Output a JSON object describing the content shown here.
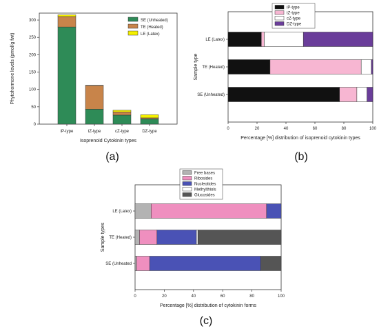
{
  "chart_data": [
    {
      "type": "bar",
      "stacked": true,
      "panel_label": "(a)",
      "xlabel": "Isoprenoid Cytokinin types",
      "ylabel": "Phytohormone levels (pmol/g fwt)",
      "categories": [
        "iP-type",
        "tZ-type",
        "cZ-type",
        "DZ-type"
      ],
      "ylim": [
        0,
        320
      ],
      "yticks": [
        0,
        50,
        100,
        150,
        200,
        250,
        300
      ],
      "legend_position": "top-right",
      "series": [
        {
          "name": "SE (Unheated)",
          "color": "#2e8b57",
          "values": [
            280,
            43,
            26,
            15
          ]
        },
        {
          "name": "TE (Heated)",
          "color": "#c8844a",
          "values": [
            30,
            68,
            9,
            3
          ]
        },
        {
          "name": "LE (Latex)",
          "color": "#f5f000",
          "values": [
            5,
            1,
            5,
            9
          ]
        }
      ]
    },
    {
      "type": "bar",
      "orientation": "horizontal",
      "stacked": true,
      "panel_label": "(b)",
      "xlabel": "Percentage [%] distribution of isoprenoid cytokinin types",
      "ylabel": "Sample type",
      "categories": [
        "SE (Unheated)",
        "TE (Heated)",
        "LE (Latex)"
      ],
      "xlim": [
        0,
        100
      ],
      "xticks": [
        0,
        20,
        40,
        60,
        80,
        100
      ],
      "legend_position": "top-center",
      "series": [
        {
          "name": "iP-type",
          "color": "#111111",
          "values": [
            77,
            29,
            23
          ]
        },
        {
          "name": "tZ-type",
          "color": "#f7b6d2",
          "values": [
            12,
            63,
            2
          ]
        },
        {
          "name": "cZ-type",
          "color": "#ffffff",
          "values": [
            7,
            7,
            27
          ]
        },
        {
          "name": "DZ-type",
          "color": "#6a3d9a",
          "values": [
            4,
            1,
            48
          ]
        }
      ]
    },
    {
      "type": "bar",
      "orientation": "horizontal",
      "stacked": true,
      "panel_label": "(c)",
      "xlabel": "Percentage [%] distribution of cytokinin forms",
      "ylabel": "Sample types",
      "categories": [
        "SE (Unheated",
        "TE (Heated)",
        "LE (Latex)"
      ],
      "xlim": [
        0,
        100
      ],
      "xticks": [
        0,
        20,
        40,
        60,
        80,
        100
      ],
      "legend_position": "top-center",
      "series": [
        {
          "name": "Free bases",
          "color": "#b3b3b3",
          "values": [
            1,
            3,
            11
          ]
        },
        {
          "name": "Ribosides",
          "color": "#ef8fbf",
          "values": [
            9,
            12,
            79
          ]
        },
        {
          "name": "Nucleotides",
          "color": "#4a52b5",
          "values": [
            76,
            27,
            10
          ]
        },
        {
          "name": "Methylthiols",
          "color": "#ffffff",
          "values": [
            0,
            1,
            0
          ]
        },
        {
          "name": "Glucosides",
          "color": "#555555",
          "values": [
            14,
            57,
            0
          ]
        }
      ]
    }
  ]
}
